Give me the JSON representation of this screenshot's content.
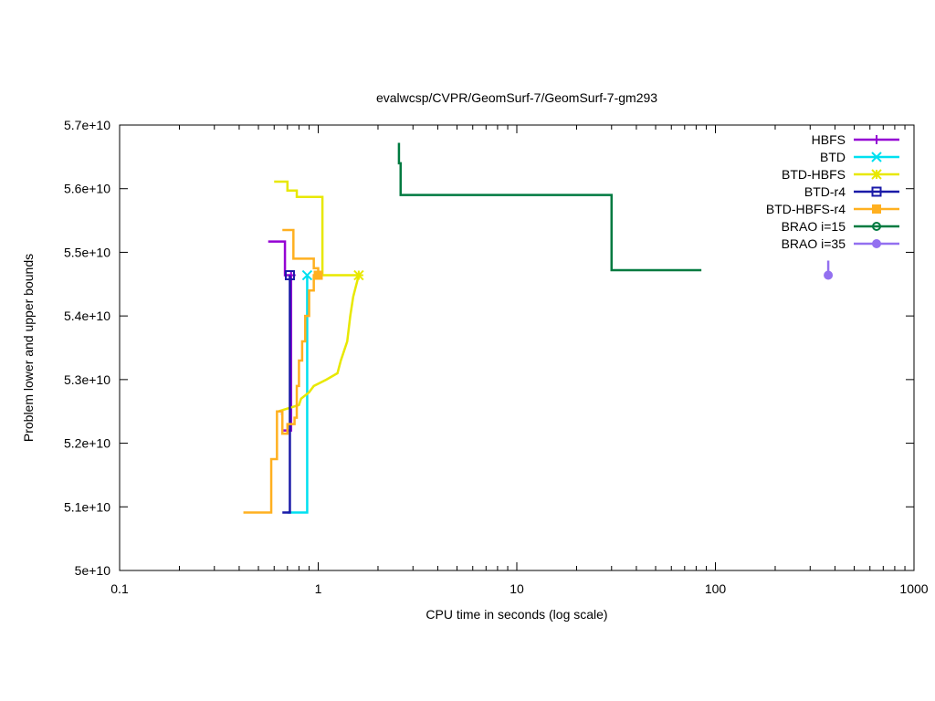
{
  "chart_data": {
    "type": "line",
    "title": "evalwcsp/CVPR/GeomSurf-7/GeomSurf-7-gm293",
    "xlabel": "CPU time in seconds (log scale)",
    "ylabel": "Problem lower and upper bounds",
    "xscale": "log",
    "xlim": [
      0.1,
      1000
    ],
    "ylim": [
      50000000000.0,
      57000000000.0
    ],
    "x_ticks": [
      {
        "value": 0.1,
        "label": "0.1"
      },
      {
        "value": 1,
        "label": "1"
      },
      {
        "value": 10,
        "label": "10"
      },
      {
        "value": 100,
        "label": "100"
      },
      {
        "value": 1000,
        "label": "1000"
      }
    ],
    "y_ticks": [
      {
        "value": 50000000000.0,
        "label": "5e+10"
      },
      {
        "value": 51000000000.0,
        "label": "5.1e+10"
      },
      {
        "value": 52000000000.0,
        "label": "5.2e+10"
      },
      {
        "value": 53000000000.0,
        "label": "5.3e+10"
      },
      {
        "value": 54000000000.0,
        "label": "5.4e+10"
      },
      {
        "value": 55000000000.0,
        "label": "5.5e+10"
      },
      {
        "value": 56000000000.0,
        "label": "5.6e+10"
      },
      {
        "value": 57000000000.0,
        "label": "5.7e+10"
      }
    ],
    "grid": false,
    "legend_position": "top-right",
    "series": [
      {
        "name": "HBFS",
        "color": "#9400d3",
        "marker": "plus",
        "upper": [
          [
            0.56,
            55170000000.0
          ],
          [
            0.68,
            55170000000.0
          ],
          [
            0.68,
            54640000000.0
          ],
          [
            0.73,
            54640000000.0
          ]
        ],
        "lower": [
          [
            0.65,
            52460000000.0
          ],
          [
            0.66,
            52460000000.0
          ],
          [
            0.66,
            52200000000.0
          ],
          [
            0.73,
            52200000000.0
          ],
          [
            0.73,
            54640000000.0
          ]
        ],
        "final": [
          0.73,
          54640000000.0
        ]
      },
      {
        "name": "BTD",
        "color": "#00e0f0",
        "marker": "x",
        "upper": [
          [
            0.88,
            54640000000.0
          ]
        ],
        "lower": [
          [
            0.7,
            50910000000.0
          ],
          [
            0.88,
            50910000000.0
          ],
          [
            0.88,
            54640000000.0
          ]
        ],
        "final": [
          0.88,
          54640000000.0
        ]
      },
      {
        "name": "BTD-HBFS",
        "color": "#e8e800",
        "marker": "star",
        "upper": [
          [
            0.6,
            56110000000.0
          ],
          [
            0.7,
            56110000000.0
          ],
          [
            0.7,
            55970000000.0
          ],
          [
            0.78,
            55970000000.0
          ],
          [
            0.78,
            55870000000.0
          ],
          [
            1.05,
            55870000000.0
          ],
          [
            1.05,
            54640000000.0
          ],
          [
            1.6,
            54640000000.0
          ]
        ],
        "lower": [
          [
            0.63,
            52500000000.0
          ],
          [
            0.8,
            52600000000.0
          ],
          [
            0.82,
            52700000000.0
          ],
          [
            0.9,
            52800000000.0
          ],
          [
            0.95,
            52900000000.0
          ],
          [
            1.1,
            53000000000.0
          ],
          [
            1.25,
            53100000000.0
          ],
          [
            1.3,
            53300000000.0
          ],
          [
            1.4,
            53600000000.0
          ],
          [
            1.45,
            54000000000.0
          ],
          [
            1.5,
            54300000000.0
          ],
          [
            1.6,
            54640000000.0
          ]
        ],
        "final": [
          1.6,
          54640000000.0
        ]
      },
      {
        "name": "BTD-r4",
        "color": "#1a1aa8",
        "marker": "square-open",
        "upper": [
          [
            0.72,
            54640000000.0
          ]
        ],
        "lower": [
          [
            0.66,
            50910000000.0
          ],
          [
            0.72,
            50910000000.0
          ],
          [
            0.72,
            54640000000.0
          ]
        ],
        "final": [
          0.72,
          54640000000.0
        ]
      },
      {
        "name": "BTD-HBFS-r4",
        "color": "#ffb020",
        "marker": "square-filled",
        "upper": [
          [
            0.66,
            55350000000.0
          ],
          [
            0.75,
            55350000000.0
          ],
          [
            0.75,
            54900000000.0
          ],
          [
            0.95,
            54900000000.0
          ],
          [
            0.95,
            54750000000.0
          ],
          [
            1.0,
            54750000000.0
          ],
          [
            1.0,
            54640000000.0
          ]
        ],
        "lower": [
          [
            0.42,
            50910000000.0
          ],
          [
            0.58,
            50910000000.0
          ],
          [
            0.58,
            51750000000.0
          ],
          [
            0.62,
            51750000000.0
          ],
          [
            0.62,
            52500000000.0
          ],
          [
            0.66,
            52500000000.0
          ],
          [
            0.66,
            52150000000.0
          ],
          [
            0.7,
            52150000000.0
          ],
          [
            0.7,
            52300000000.0
          ],
          [
            0.76,
            52300000000.0
          ],
          [
            0.76,
            52400000000.0
          ],
          [
            0.78,
            52400000000.0
          ],
          [
            0.78,
            52900000000.0
          ],
          [
            0.8,
            52900000000.0
          ],
          [
            0.8,
            53300000000.0
          ],
          [
            0.83,
            53300000000.0
          ],
          [
            0.83,
            53600000000.0
          ],
          [
            0.86,
            53600000000.0
          ],
          [
            0.86,
            54000000000.0
          ],
          [
            0.9,
            54000000000.0
          ],
          [
            0.9,
            54400000000.0
          ],
          [
            0.95,
            54400000000.0
          ],
          [
            0.95,
            54640000000.0
          ],
          [
            1.0,
            54640000000.0
          ]
        ],
        "final": [
          1.0,
          54640000000.0
        ]
      },
      {
        "name": "BRAO i=15",
        "color": "#007a40",
        "marker": "circle-open",
        "upper": [
          [
            2.55,
            56720000000.0
          ],
          [
            2.55,
            56400000000.0
          ],
          [
            2.6,
            56400000000.0
          ],
          [
            2.6,
            55900000000.0
          ],
          [
            30,
            55900000000.0
          ],
          [
            30,
            54720000000.0
          ],
          [
            85,
            54720000000.0
          ]
        ],
        "lower": [],
        "final": null
      },
      {
        "name": "BRAO i=35",
        "color": "#9370f0",
        "marker": "circle-filled",
        "upper": [
          [
            370,
            54870000000.0
          ],
          [
            370,
            54640000000.0
          ]
        ],
        "lower": [],
        "final": [
          370,
          54640000000.0
        ]
      }
    ]
  }
}
